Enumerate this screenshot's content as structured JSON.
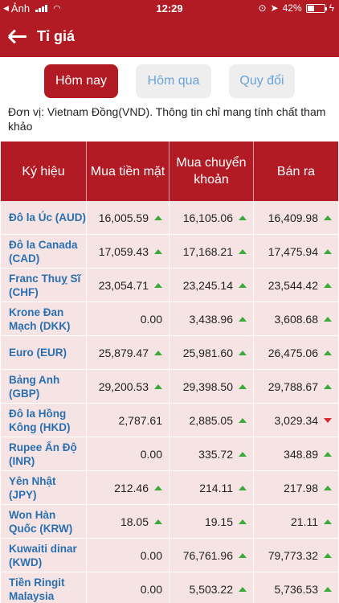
{
  "status_bar": {
    "back_app": "Ảnh",
    "time": "12:29",
    "battery": "42%",
    "battery_level": 0.42
  },
  "header": {
    "title": "Tỉ giá"
  },
  "tabs": [
    {
      "label": "Hôm nay",
      "active": true
    },
    {
      "label": "Hôm qua",
      "active": false
    },
    {
      "label": "Quy đổi",
      "active": false
    }
  ],
  "unit_note": "Đơn vị: Vietnam Đồng(VND). Thông tin chỉ mang tính chất tham khảo",
  "table": {
    "headers": [
      "Ký hiệu",
      "Mua tiền mặt",
      "Mua chuyển khoản",
      "Bán ra"
    ],
    "rows": [
      {
        "name": "Đô la Úc (AUD)",
        "cash": "16,005.59",
        "cash_trend": "up",
        "transfer": "16,105.06",
        "transfer_trend": "up",
        "sell": "16,409.98",
        "sell_trend": "up"
      },
      {
        "name": "Đô la Canada (CAD)",
        "cash": "17,059.43",
        "cash_trend": "up",
        "transfer": "17,168.21",
        "transfer_trend": "up",
        "sell": "17,475.94",
        "sell_trend": "up"
      },
      {
        "name": "Franc Thuỵ Sĩ (CHF)",
        "cash": "23,054.71",
        "cash_trend": "up",
        "transfer": "23,245.14",
        "transfer_trend": "up",
        "sell": "23,544.42",
        "sell_trend": "up"
      },
      {
        "name": "Krone Đan Mạch (DKK)",
        "cash": "0.00",
        "cash_trend": "none",
        "transfer": "3,438.96",
        "transfer_trend": "up",
        "sell": "3,608.68",
        "sell_trend": "up"
      },
      {
        "name": "Euro (EUR)",
        "cash": "25,879.47",
        "cash_trend": "up",
        "transfer": "25,981.60",
        "transfer_trend": "up",
        "sell": "26,475.06",
        "sell_trend": "up"
      },
      {
        "name": "Bảng Anh (GBP)",
        "cash": "29,200.53",
        "cash_trend": "up",
        "transfer": "29,398.50",
        "transfer_trend": "up",
        "sell": "29,788.67",
        "sell_trend": "up"
      },
      {
        "name": "Đô la Hồng Kông (HKD)",
        "cash": "2,787.61",
        "cash_trend": "none",
        "transfer": "2,885.05",
        "transfer_trend": "up",
        "sell": "3,029.34",
        "sell_trend": "down"
      },
      {
        "name": "Rupee Ấn Độ (INR)",
        "cash": "0.00",
        "cash_trend": "none",
        "transfer": "335.72",
        "transfer_trend": "up",
        "sell": "348.89",
        "sell_trend": "up"
      },
      {
        "name": "Yên Nhật (JPY)",
        "cash": "212.46",
        "cash_trend": "up",
        "transfer": "214.11",
        "transfer_trend": "up",
        "sell": "217.98",
        "sell_trend": "up"
      },
      {
        "name": "Won Hàn Quốc (KRW)",
        "cash": "18.05",
        "cash_trend": "up",
        "transfer": "19.15",
        "transfer_trend": "up",
        "sell": "21.11",
        "sell_trend": "up"
      },
      {
        "name": "Kuwaiti dinar (KWD)",
        "cash": "0.00",
        "cash_trend": "none",
        "transfer": "76,761.96",
        "transfer_trend": "up",
        "sell": "79,773.32",
        "sell_trend": "up"
      },
      {
        "name": "Tiền Ringit Malaysia",
        "cash": "0.00",
        "cash_trend": "none",
        "transfer": "5,503.22",
        "transfer_trend": "up",
        "sell": "5,736.53",
        "sell_trend": "up"
      }
    ]
  },
  "colors": {
    "primary": "#b31b24",
    "row_bg": "#f6e4e4",
    "link": "#2a6fb0",
    "up": "#3aaa3a",
    "down": "#d6282e"
  }
}
